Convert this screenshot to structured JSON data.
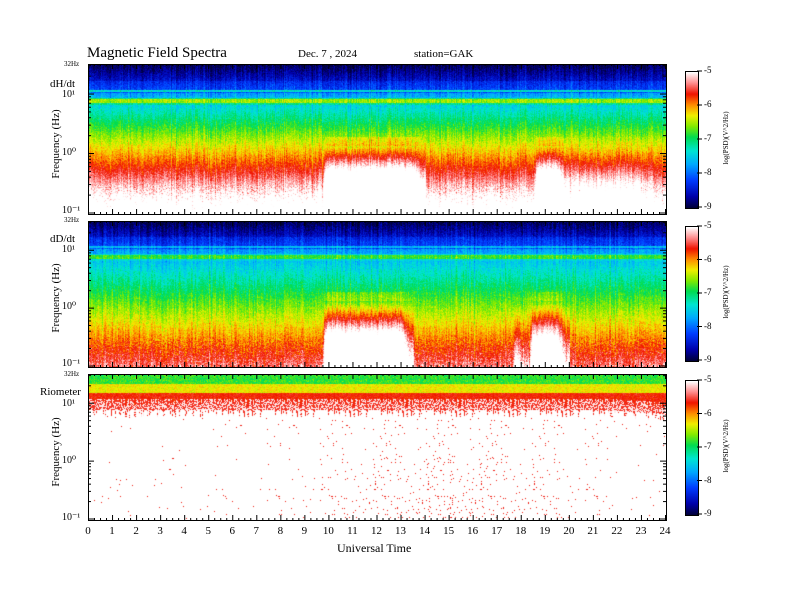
{
  "header": {
    "title": "Magnetic  Field  Spectra",
    "date": "Dec. 7  , 2024",
    "station": "station=GAK"
  },
  "xaxis": {
    "label": "Universal  Time",
    "ticks": [
      "0",
      "1",
      "2",
      "3",
      "4",
      "5",
      "6",
      "7",
      "8",
      "9",
      "10",
      "11",
      "12",
      "13",
      "14",
      "15",
      "16",
      "17",
      "18",
      "19",
      "20",
      "21",
      "22",
      "23",
      "24"
    ]
  },
  "colorbar": {
    "ticks": [
      "-5",
      "-6",
      "-7",
      "-8",
      "-9"
    ],
    "label": "log(PSD)(V^2/Hz)"
  },
  "panels": [
    {
      "label": "dH/dt",
      "ylabel": "Frequency  (Hz)",
      "top_label": "32Hz",
      "yticks": [
        "10¹",
        "10⁰",
        "10⁻¹"
      ]
    },
    {
      "label": "dD/dt",
      "ylabel": "Frequency  (Hz)",
      "top_label": "32Hz",
      "yticks": [
        "10¹",
        "10⁰",
        "10⁻¹"
      ]
    },
    {
      "label": "Riometer",
      "ylabel": "Frequency  (Hz)",
      "top_label": "32Hz",
      "yticks": [
        "10¹",
        "10⁰",
        "10⁻¹"
      ]
    }
  ],
  "chart_data": [
    {
      "type": "heatmap",
      "panel": "dH/dt",
      "xlim": [
        0,
        24
      ],
      "ylim": [
        0.1,
        32
      ],
      "yscale": "log",
      "zlim": [
        -9,
        -5
      ],
      "xlabel": "Universal  Time",
      "ylabel": "Frequency  (Hz)",
      "colorbar_label": "log(PSD)(V^2/Hz)",
      "features": [
        {
          "name": "narrowband line",
          "freq_hz": 8.0
        },
        {
          "name": "broadband enhancement",
          "ut_start": 9.7,
          "ut_end": 14.0
        },
        {
          "name": "broadband enhancement",
          "ut_start": 18.5,
          "ut_end": 20.0
        }
      ]
    },
    {
      "type": "heatmap",
      "panel": "dD/dt",
      "xlim": [
        0,
        24
      ],
      "ylim": [
        0.1,
        32
      ],
      "yscale": "log",
      "zlim": [
        -9,
        -5
      ],
      "xlabel": "Universal  Time",
      "ylabel": "Frequency  (Hz)",
      "colorbar_label": "log(PSD)(V^2/Hz)",
      "features": [
        {
          "name": "narrowband line",
          "freq_hz": 8.0
        },
        {
          "name": "broadband enhancement",
          "ut_start": 9.7,
          "ut_end": 13.5
        },
        {
          "name": "broadband enhancement",
          "ut_start": 18.3,
          "ut_end": 20.0
        }
      ]
    },
    {
      "type": "heatmap",
      "panel": "Riometer",
      "xlim": [
        0,
        24
      ],
      "ylim": [
        0.1,
        32
      ],
      "yscale": "log",
      "zlim": [
        -9,
        -5
      ],
      "xlabel": "Universal  Time",
      "ylabel": "Frequency  (Hz)",
      "colorbar_label": "log(PSD)(V^2/Hz)"
    }
  ]
}
